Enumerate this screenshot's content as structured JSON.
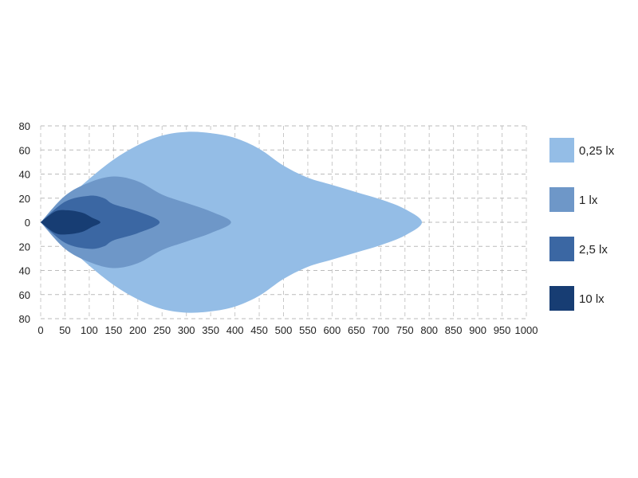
{
  "chart_data": {
    "type": "area",
    "title": "",
    "xlabel": "",
    "ylabel": "",
    "xlim": [
      0,
      1000
    ],
    "ylim": [
      -80,
      80
    ],
    "grid": true,
    "legend_placement": "right",
    "x_ticks": [
      0,
      50,
      100,
      150,
      200,
      250,
      300,
      350,
      400,
      450,
      500,
      550,
      600,
      650,
      700,
      750,
      800,
      850,
      900,
      950,
      1000
    ],
    "y_ticks": [
      80,
      60,
      40,
      20,
      0,
      -20,
      -40,
      -60,
      -80
    ],
    "y_tick_labels": [
      "80",
      "60",
      "40",
      "20",
      "0",
      "20",
      "40",
      "60",
      "80"
    ],
    "symmetric_about_x_axis": true,
    "series": [
      {
        "name": "0,25 lx",
        "color": "#94bde6",
        "upper_contour": [
          [
            0,
            0
          ],
          [
            50,
            18
          ],
          [
            100,
            36
          ],
          [
            150,
            52
          ],
          [
            200,
            64
          ],
          [
            250,
            72
          ],
          [
            300,
            75
          ],
          [
            350,
            74
          ],
          [
            400,
            70
          ],
          [
            450,
            61
          ],
          [
            500,
            47
          ],
          [
            550,
            37
          ],
          [
            600,
            31
          ],
          [
            650,
            25
          ],
          [
            700,
            19
          ],
          [
            750,
            11
          ],
          [
            785,
            0
          ]
        ]
      },
      {
        "name": "1 lx",
        "color": "#6e97c8",
        "upper_contour": [
          [
            0,
            0
          ],
          [
            50,
            22
          ],
          [
            100,
            33
          ],
          [
            150,
            38
          ],
          [
            200,
            34
          ],
          [
            250,
            23
          ],
          [
            300,
            16
          ],
          [
            350,
            9
          ],
          [
            392,
            0
          ]
        ]
      },
      {
        "name": "2,5 lx",
        "color": "#3b67a3",
        "upper_contour": [
          [
            0,
            0
          ],
          [
            50,
            17
          ],
          [
            100,
            22
          ],
          [
            130,
            20
          ],
          [
            150,
            15
          ],
          [
            200,
            9
          ],
          [
            245,
            0
          ]
        ]
      },
      {
        "name": "10 lx",
        "color": "#173d73",
        "upper_contour": [
          [
            0,
            0
          ],
          [
            30,
            9
          ],
          [
            55,
            10
          ],
          [
            85,
            8
          ],
          [
            105,
            4
          ],
          [
            123,
            0
          ]
        ]
      }
    ]
  }
}
